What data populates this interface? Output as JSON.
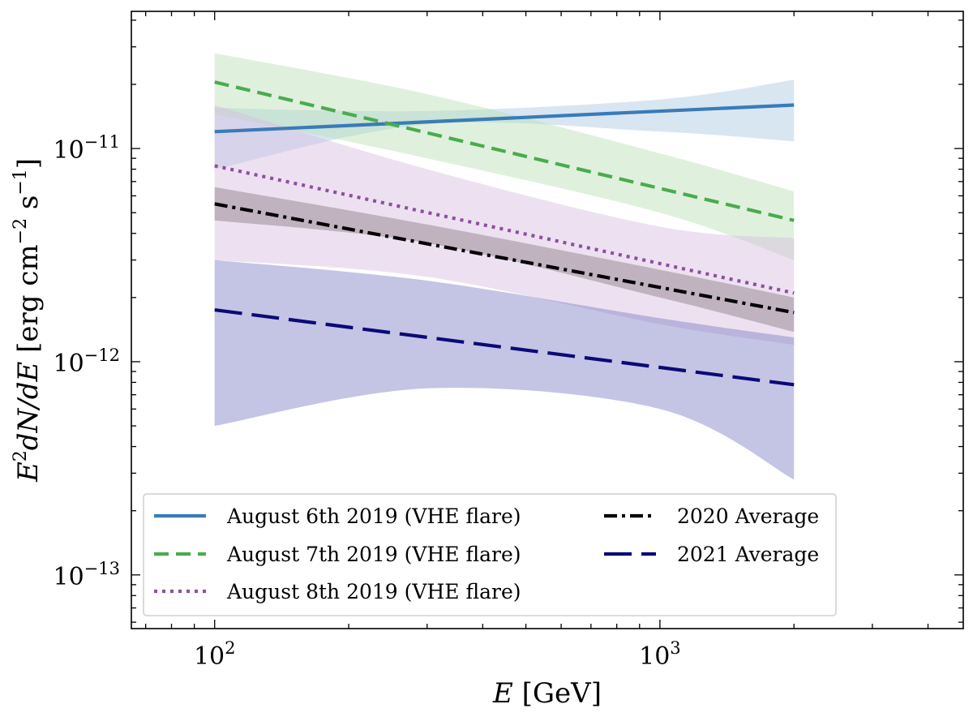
{
  "chart_data": {
    "type": "line",
    "title": "",
    "xscale": "log",
    "yscale": "log",
    "xlim": [
      65,
      4800
    ],
    "ylim": [
      5.6e-14,
      4.4e-11
    ],
    "xlabel": {
      "var": "E",
      "unit": " [GeV]"
    },
    "ylabel": {
      "base": "E",
      "exp": "2",
      "rest": "dN/dE",
      "unit_prefix": " [erg cm",
      "exp2": "−2",
      "mid": " s",
      "exp3": "−1",
      "end": "]"
    },
    "xticks": [
      {
        "value": 100,
        "base": "10",
        "exp": "2"
      },
      {
        "value": 1000,
        "base": "10",
        "exp": "3"
      }
    ],
    "yticks": [
      {
        "value": 1e-11,
        "base": "10",
        "exp": "−11"
      },
      {
        "value": 1e-12,
        "base": "10",
        "exp": "−12"
      },
      {
        "value": 1e-13,
        "base": "10",
        "exp": "−13"
      }
    ],
    "x_range": [
      100,
      2000
    ],
    "series": [
      {
        "name": "August 6th 2019 (VHE flare)",
        "color": "#3a7bb8",
        "style": "solid",
        "band_color": "#a9c7e3",
        "y_start": 1.2e-11,
        "y_end": 1.6e-11,
        "band_upper": [
          [
            100,
            1.55e-11
          ],
          [
            300,
            1.5e-11
          ],
          [
            1000,
            1.7e-11
          ],
          [
            2000,
            2.1e-11
          ]
        ],
        "band_lower": [
          [
            100,
            8e-12
          ],
          [
            300,
            1.3e-11
          ],
          [
            1000,
            1.2e-11
          ],
          [
            2000,
            1.08e-11
          ]
        ]
      },
      {
        "name": "August 7th 2019 (VHE flare)",
        "color": "#4aab4e",
        "style": "dashed",
        "band_color": "#b9dfb3",
        "y_start": 2.05e-11,
        "y_end": 4.6e-12,
        "band_upper": [
          [
            100,
            2.8e-11
          ],
          [
            300,
            1.8e-11
          ],
          [
            1000,
            9.5e-12
          ],
          [
            2000,
            6.3e-12
          ]
        ],
        "band_lower": [
          [
            100,
            1.45e-11
          ],
          [
            300,
            9e-12
          ],
          [
            1000,
            5e-12
          ],
          [
            2000,
            3e-12
          ]
        ]
      },
      {
        "name": "August 8th 2019 (VHE flare)",
        "color": "#8e4f9e",
        "style": "dotted",
        "band_color": "#d8bddf",
        "y_start": 8.3e-12,
        "y_end": 2.1e-12,
        "band_upper": [
          [
            100,
            1.6e-11
          ],
          [
            300,
            8e-12
          ],
          [
            1000,
            4.3e-12
          ],
          [
            2000,
            3.8e-12
          ]
        ],
        "band_lower": [
          [
            100,
            3e-12
          ],
          [
            300,
            2.5e-12
          ],
          [
            1000,
            1.5e-12
          ],
          [
            2000,
            1.2e-12
          ]
        ]
      },
      {
        "name": "2020 Average",
        "color": "#000000",
        "style": "dashdot",
        "band_color": "#8c7a84",
        "y_start": 5.5e-12,
        "y_end": 1.7e-12,
        "band_upper": [
          [
            100,
            6.6e-12
          ],
          [
            300,
            4.4e-12
          ],
          [
            1000,
            2.7e-12
          ],
          [
            2000,
            2e-12
          ]
        ],
        "band_lower": [
          [
            100,
            4.6e-12
          ],
          [
            300,
            3.6e-12
          ],
          [
            1000,
            2e-12
          ],
          [
            2000,
            1.38e-12
          ]
        ]
      },
      {
        "name": "2021 Average",
        "color": "#0a0a78",
        "style": "longdash",
        "band_color": "#7c7ec4",
        "y_start": 1.75e-12,
        "y_end": 7.8e-13,
        "band_upper": [
          [
            100,
            3e-12
          ],
          [
            300,
            2.4e-12
          ],
          [
            1000,
            1.6e-12
          ],
          [
            2000,
            1.3e-12
          ]
        ],
        "band_lower": [
          [
            100,
            5e-13
          ],
          [
            300,
            7.5e-13
          ],
          [
            1000,
            6e-13
          ],
          [
            2000,
            2.8e-13
          ]
        ]
      }
    ],
    "legend": {
      "position": "lower-left",
      "columns": [
        [
          "August 6th 2019 (VHE flare)",
          "August 7th 2019 (VHE flare)",
          "August 8th 2019 (VHE flare)"
        ],
        [
          "2020 Average",
          "2021 Average"
        ]
      ]
    }
  }
}
